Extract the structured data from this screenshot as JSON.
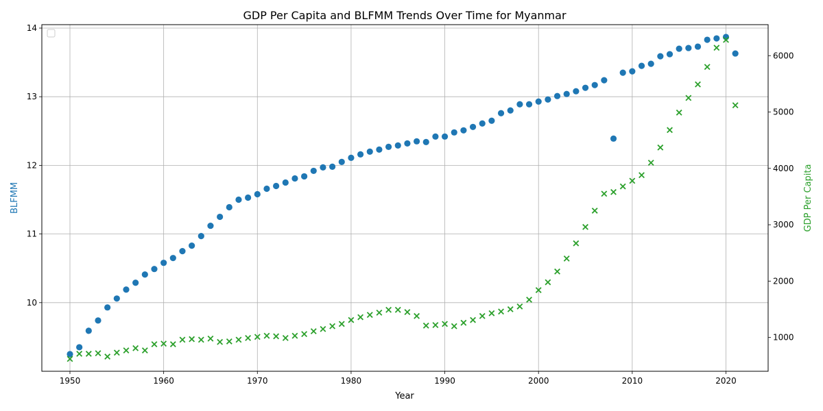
{
  "chart_data": {
    "type": "scatter",
    "title": "GDP Per Capita and BLFMM Trends Over Time for Myanmar",
    "xlabel": "Year",
    "ylabel_left": "BLFMM",
    "ylabel_right": "GDP Per Capita",
    "xlim": [
      1947,
      2024.5
    ],
    "ylim_left": [
      9.0,
      14.05
    ],
    "ylim_right": [
      400,
      6550
    ],
    "x_ticks": [
      1950,
      1960,
      1970,
      1980,
      1990,
      2000,
      2010,
      2020
    ],
    "y_left_ticks": [
      10,
      11,
      12,
      13,
      14
    ],
    "y_right_ticks": [
      1000,
      2000,
      3000,
      4000,
      5000,
      6000
    ],
    "grid": true,
    "legend": "upper-left (empty)",
    "colors": {
      "blfmm": "#1f77b4",
      "gdp": "#2ca02c"
    },
    "series": [
      {
        "key": "blfmm",
        "axis": "left",
        "marker": "circle",
        "x": [
          1950,
          1951,
          1952,
          1953,
          1954,
          1955,
          1956,
          1957,
          1958,
          1959,
          1960,
          1961,
          1962,
          1963,
          1964,
          1965,
          1966,
          1967,
          1968,
          1969,
          1970,
          1971,
          1972,
          1973,
          1974,
          1975,
          1976,
          1977,
          1978,
          1979,
          1980,
          1981,
          1982,
          1983,
          1984,
          1985,
          1986,
          1987,
          1988,
          1989,
          1990,
          1991,
          1992,
          1993,
          1994,
          1995,
          1996,
          1997,
          1998,
          1999,
          2000,
          2001,
          2002,
          2003,
          2004,
          2005,
          2006,
          2007,
          2008,
          2009,
          2010,
          2011,
          2012,
          2013,
          2014,
          2015,
          2016,
          2017,
          2018,
          2019,
          2020,
          2021
        ],
        "values": [
          9.25,
          9.35,
          9.59,
          9.74,
          9.93,
          10.06,
          10.19,
          10.29,
          10.41,
          10.49,
          10.58,
          10.65,
          10.75,
          10.83,
          10.97,
          11.12,
          11.25,
          11.39,
          11.5,
          11.53,
          11.58,
          11.66,
          11.7,
          11.75,
          11.81,
          11.84,
          11.92,
          11.97,
          11.98,
          12.05,
          12.11,
          12.16,
          12.2,
          12.23,
          12.27,
          12.29,
          12.32,
          12.35,
          12.34,
          12.42,
          12.42,
          12.48,
          12.51,
          12.56,
          12.61,
          12.65,
          12.76,
          12.8,
          12.89,
          12.89,
          12.93,
          12.96,
          13.01,
          13.04,
          13.08,
          13.13,
          13.17,
          13.24,
          12.39,
          13.35,
          13.37,
          13.45,
          13.48,
          13.59,
          13.62,
          13.7,
          13.71,
          13.73,
          13.83,
          13.85,
          13.87,
          13.63
        ]
      },
      {
        "key": "gdp",
        "axis": "right",
        "marker": "x",
        "x": [
          1950,
          1951,
          1952,
          1953,
          1954,
          1955,
          1956,
          1957,
          1958,
          1959,
          1960,
          1961,
          1962,
          1963,
          1964,
          1965,
          1966,
          1967,
          1968,
          1969,
          1970,
          1971,
          1972,
          1973,
          1974,
          1975,
          1976,
          1977,
          1978,
          1979,
          1980,
          1981,
          1982,
          1983,
          1984,
          1985,
          1986,
          1987,
          1988,
          1989,
          1990,
          1991,
          1992,
          1993,
          1994,
          1995,
          1996,
          1997,
          1998,
          1999,
          2000,
          2001,
          2002,
          2003,
          2004,
          2005,
          2006,
          2007,
          2008,
          2009,
          2010,
          2011,
          2012,
          2013,
          2014,
          2015,
          2016,
          2017,
          2018,
          2019,
          2020,
          2021
        ],
        "values": [
          620,
          710,
          710,
          720,
          660,
          730,
          770,
          810,
          770,
          880,
          890,
          880,
          960,
          970,
          960,
          980,
          920,
          930,
          960,
          990,
          1010,
          1030,
          1020,
          990,
          1030,
          1060,
          1110,
          1150,
          1200,
          1240,
          1310,
          1360,
          1400,
          1440,
          1490,
          1490,
          1450,
          1380,
          1210,
          1220,
          1240,
          1200,
          1260,
          1310,
          1380,
          1430,
          1460,
          1500,
          1550,
          1670,
          1840,
          1980,
          2170,
          2400,
          2670,
          2960,
          3250,
          3550,
          3580,
          3680,
          3780,
          3880,
          4100,
          4370,
          4680,
          4990,
          5250,
          5490,
          5800,
          6140,
          6280,
          5120
        ]
      }
    ]
  }
}
